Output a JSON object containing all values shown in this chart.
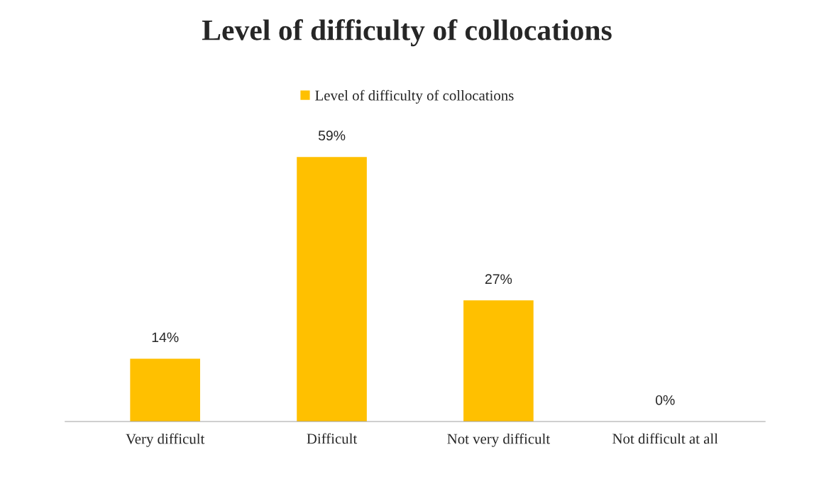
{
  "chart_data": {
    "type": "bar",
    "title": "Level of difficulty of collocations",
    "categories": [
      "Very difficult",
      "Difficult",
      "Not very difficult",
      "Not difficult at all"
    ],
    "series": [
      {
        "name": "Level of difficulty of collocations",
        "color": "#ffc000",
        "values": [
          14,
          59,
          27,
          0
        ],
        "value_labels": [
          "14%",
          "59%",
          "27%",
          "0%"
        ]
      }
    ],
    "legend": "top",
    "grid": false
  }
}
